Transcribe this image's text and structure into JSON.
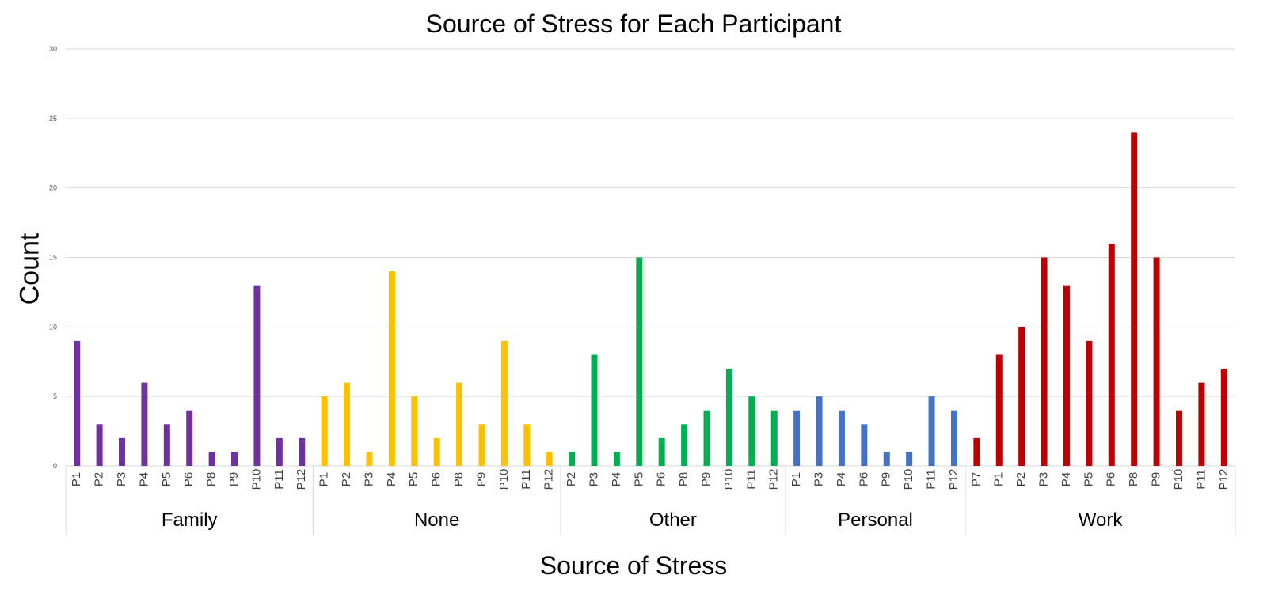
{
  "chart_data": {
    "type": "bar",
    "title": "Source of Stress for Each Participant",
    "xlabel": "Source of Stress",
    "ylabel": "Count",
    "ylim": [
      0,
      30
    ],
    "yticks": [
      0,
      5,
      10,
      15,
      20,
      25,
      30
    ],
    "grid": true,
    "legend": "none",
    "groups": [
      {
        "name": "Family",
        "color": "#7030a0",
        "categories": [
          "P1",
          "P2",
          "P3",
          "P4",
          "P5",
          "P6",
          "P8",
          "P9",
          "P10",
          "P11",
          "P12"
        ],
        "values": [
          9,
          3,
          2,
          6,
          3,
          4,
          1,
          1,
          13,
          2,
          2
        ]
      },
      {
        "name": "None",
        "color": "#ffc000",
        "categories": [
          "P1",
          "P2",
          "P3",
          "P4",
          "P5",
          "P6",
          "P8",
          "P9",
          "P10",
          "P11",
          "P12"
        ],
        "values": [
          5,
          6,
          1,
          14,
          5,
          2,
          6,
          3,
          9,
          3,
          1
        ]
      },
      {
        "name": "Other",
        "color": "#00b050",
        "categories": [
          "P2",
          "P3",
          "P4",
          "P5",
          "P6",
          "P8",
          "P9",
          "P10",
          "P11",
          "P12"
        ],
        "values": [
          1,
          8,
          1,
          15,
          2,
          3,
          4,
          7,
          5,
          4
        ]
      },
      {
        "name": "Personal",
        "color": "#4472c4",
        "categories": [
          "P1",
          "P3",
          "P4",
          "P6",
          "P9",
          "P10",
          "P11",
          "P12"
        ],
        "values": [
          4,
          5,
          4,
          3,
          1,
          1,
          5,
          4
        ]
      },
      {
        "name": "Work",
        "color": "#c00000",
        "categories": [
          "P7",
          "P1",
          "P2",
          "P3",
          "P4",
          "P5",
          "P6",
          "P8",
          "P9",
          "P10",
          "P11",
          "P12"
        ],
        "values": [
          2,
          8,
          10,
          15,
          13,
          9,
          16,
          24,
          15,
          4,
          6,
          7
        ]
      }
    ]
  }
}
